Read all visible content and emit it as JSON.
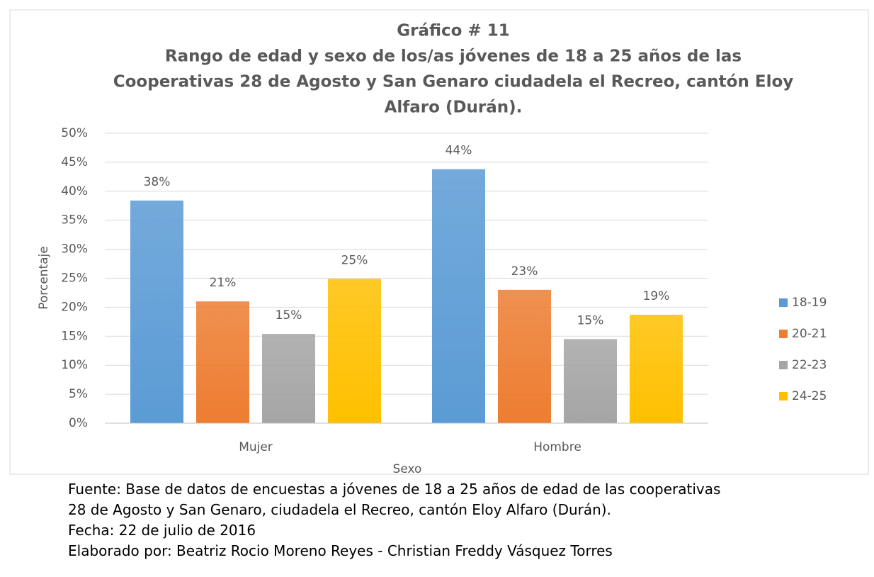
{
  "chart_data": {
    "type": "bar",
    "title": "Gráfico # 11",
    "subtitle": [
      "Rango de edad y sexo de los/as jóvenes de 18 a 25 años de las",
      "Cooperativas 28 de Agosto y San Genaro ciudadela el Recreo, cantón Eloy",
      "Alfaro (Durán)."
    ],
    "x_label": "Sexo",
    "y_label": "Porcentaje",
    "categories": [
      "Mujer",
      "Hombre"
    ],
    "series": [
      {
        "name": "18-19",
        "color": "#5b9bd5",
        "values": [
          38.4,
          43.8
        ],
        "value_labels": [
          "38%",
          "44%"
        ]
      },
      {
        "name": "20-21",
        "color": "#ed7d31",
        "values": [
          21.0,
          23.0
        ],
        "value_labels": [
          "21%",
          "23%"
        ]
      },
      {
        "name": "22-23",
        "color": "#a5a5a5",
        "values": [
          15.4,
          14.5
        ],
        "value_labels": [
          "15%",
          "15%"
        ]
      },
      {
        "name": "24-25",
        "color": "#ffc000",
        "values": [
          24.9,
          18.7
        ],
        "value_labels": [
          "25%",
          "19%"
        ]
      }
    ],
    "ylim": [
      0,
      50
    ],
    "yticks": [
      {
        "value": 0,
        "label": "0%"
      },
      {
        "value": 5,
        "label": "5%"
      },
      {
        "value": 10,
        "label": "10%"
      },
      {
        "value": 15,
        "label": "15%"
      },
      {
        "value": 20,
        "label": "20%"
      },
      {
        "value": 25,
        "label": "25%"
      },
      {
        "value": 30,
        "label": "30%"
      },
      {
        "value": 35,
        "label": "35%"
      },
      {
        "value": 40,
        "label": "40%"
      },
      {
        "value": 45,
        "label": "45%"
      },
      {
        "value": 50,
        "label": "50%"
      }
    ],
    "grid": true,
    "legend": "right"
  },
  "footer": [
    "Fuente: Base de datos de encuestas a jóvenes de 18 a 25 años de edad de las cooperativas",
    "28 de Agosto y San Genaro, ciudadela el Recreo, cantón Eloy Alfaro (Durán).",
    "Fecha: 22 de julio de 2016",
    "Elaborado por: Beatriz Rocio Moreno Reyes - Christian Freddy Vásquez Torres"
  ]
}
